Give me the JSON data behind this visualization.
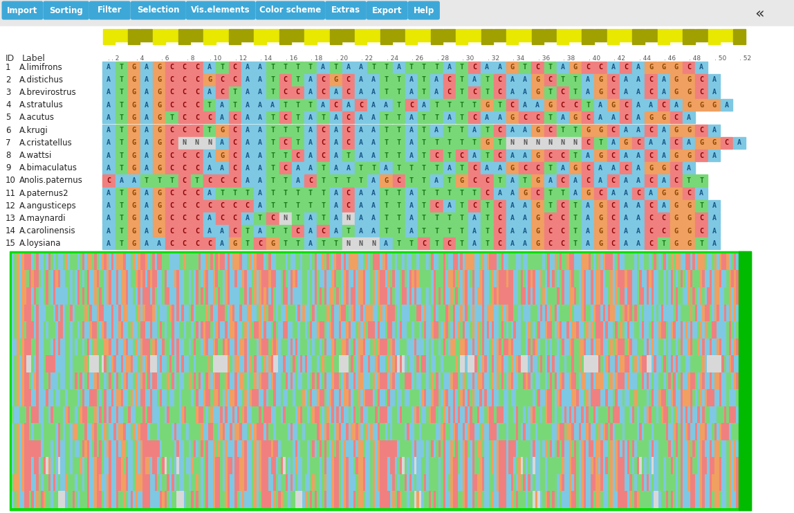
{
  "title_buttons": [
    "Import",
    "Sorting",
    "Filter",
    "Selection",
    "Vis.elements",
    "Color scheme",
    "Extras",
    "Export",
    "Help"
  ],
  "button_color": "#3da8d8",
  "species": [
    {
      "id": 1,
      "label": "A.limifrons"
    },
    {
      "id": 2,
      "label": "A.distichus"
    },
    {
      "id": 3,
      "label": "A.brevirostrus"
    },
    {
      "id": 4,
      "label": "A.stratulus"
    },
    {
      "id": 5,
      "label": "A.acutus"
    },
    {
      "id": 6,
      "label": "A.krugi"
    },
    {
      "id": 7,
      "label": "A.cristatellus"
    },
    {
      "id": 8,
      "label": "A.wattsi"
    },
    {
      "id": 9,
      "label": "A.bimaculatus"
    },
    {
      "id": 10,
      "label": "Anolis.paternus"
    },
    {
      "id": 11,
      "label": "A.paternus2"
    },
    {
      "id": 12,
      "label": "A.angusticeps"
    },
    {
      "id": 13,
      "label": "A.maynardi"
    },
    {
      "id": 14,
      "label": "A.carolinensis"
    },
    {
      "id": 15,
      "label": "A.loysiana"
    }
  ],
  "sequences": [
    "ATGAGCCCATCAATTTTATAATTATTTATCAAGTCTAGCCACAGGGCA",
    "ATGAGCCCGCCAATCTACGCAATTATACTATCAAGCTTAGCAACAGGCA",
    "ATGAGCCCACTAATCCACACAATTATACTCTCAAGTCTAGCAACAGGCA",
    "ATGAGCCCTATAAATTTACACAATCATTTTGTCAAGCCTAGCAACAGGGA",
    "ATGAGTCCCACAATCTATACAATTATTATCAAGCCTAGCAACAGGCA",
    "ATGAGCCCTGCAATTTACACAATTATATTATCAAGCTTGGCAACAGGCA",
    "ATGAGCNNNACAATCTACACAATTATTTTTGTNNNNNNCTAGCAACAGGCA",
    "ATGAGCCCAGCAATTCACATAATTATCTCATCAAGCCTAGCAACAGGCA",
    "ATGAGCCCAACAATCAATAATTATTTTATCAAGCCTAGCAACAGGCA",
    "CAATTTCTCCCAATTACTTTTAGCTTATGCCTATGACACACAACACTT",
    "ATGAGCCCATTTATTTTTACAATTATTTTTCAAGCTTAGCAACAGGCA",
    "ATGAGCCCCCCCATTTTTACAATTATCATCTCAAGTCTAGCAACAGGTA",
    "ATGAGCCCACCATCNTATANAATTATTTTATCAAGCCTAGCAACCGGCA",
    "ATGAGCCCAACTATTCACATAATTATTTTATCAAGCCTAGCAACCGGCA",
    "ATGAACCCCAGTCGTTATTNNNATTCTCTATCAAGCCTAGCAACTGGTA"
  ],
  "nuc_bg": {
    "A": "#7ec8e3",
    "T": "#78d878",
    "G": "#f0a060",
    "C": "#f08080",
    "N": "#d8d8d8"
  },
  "nuc_fg": {
    "A": "#1a5a8a",
    "T": "#1a7a1a",
    "G": "#8a4400",
    "C": "#8a0000",
    "N": "#555555"
  },
  "ruler_yellow": "#e8e800",
  "ruler_olive": "#a0a000",
  "heatmap_border": "#00dd00",
  "white": "#ffffff",
  "light_gray": "#f0f0f0",
  "dark_gray": "#cccccc"
}
